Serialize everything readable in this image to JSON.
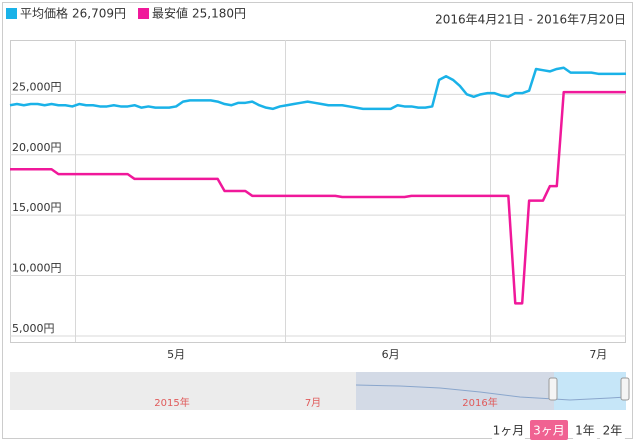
{
  "chart_data": {
    "type": "line",
    "date_range": "2016年4月21日 - 2016年7月20日",
    "categories": [
      null,
      null,
      null,
      null,
      null,
      null,
      null,
      null,
      null,
      null,
      null,
      null,
      null,
      null,
      null,
      null,
      null,
      null,
      null,
      null,
      null,
      null,
      null,
      null,
      "5月",
      null,
      null,
      null,
      null,
      null,
      null,
      null,
      null,
      null,
      null,
      null,
      null,
      null,
      null,
      null,
      null,
      null,
      null,
      null,
      null,
      null,
      null,
      null,
      null,
      null,
      null,
      null,
      null,
      null,
      null,
      "6月",
      null,
      null,
      null,
      null,
      null,
      null,
      null,
      null,
      null,
      null,
      null,
      null,
      null,
      null,
      null,
      null,
      null,
      null,
      null,
      null,
      null,
      null,
      null,
      null,
      null,
      null,
      null,
      null,
      null,
      "7月",
      null,
      null,
      null,
      null
    ],
    "series": [
      {
        "name": "平均価格",
        "color": "#1ab2e8",
        "latest": {
          "value": 26709,
          "label": "26,709円"
        },
        "values": [
          24100,
          24200,
          24100,
          24200,
          24200,
          24100,
          24200,
          24100,
          24100,
          24000,
          24200,
          24100,
          24100,
          24000,
          24000,
          24100,
          24000,
          24000,
          24100,
          23900,
          24000,
          23900,
          23900,
          23900,
          24000,
          24400,
          24500,
          24500,
          24500,
          24500,
          24400,
          24200,
          24100,
          24300,
          24300,
          24400,
          24100,
          23900,
          23800,
          24000,
          24100,
          24200,
          24300,
          24400,
          24300,
          24200,
          24100,
          24100,
          24100,
          24000,
          23900,
          23800,
          23800,
          23800,
          23800,
          23800,
          24100,
          24000,
          24000,
          23900,
          23900,
          24000,
          26200,
          26500,
          26200,
          25700,
          25000,
          24800,
          25000,
          25100,
          25100,
          24900,
          24800,
          25100,
          25100,
          25300,
          27100,
          27000,
          26900,
          27100,
          27200,
          26800,
          26800,
          26800,
          26800,
          26700,
          26700,
          26700,
          26700,
          26709
        ]
      },
      {
        "name": "最安値",
        "color": "#f0189a",
        "latest": {
          "value": 25180,
          "label": "25,180円"
        },
        "values": [
          18800,
          18800,
          18800,
          18800,
          18800,
          18800,
          18800,
          18400,
          18400,
          18400,
          18400,
          18400,
          18400,
          18400,
          18400,
          18400,
          18400,
          18400,
          18000,
          18000,
          18000,
          18000,
          18000,
          18000,
          18000,
          18000,
          18000,
          18000,
          18000,
          18000,
          18000,
          17000,
          17000,
          17000,
          17000,
          16600,
          16600,
          16600,
          16600,
          16600,
          16600,
          16600,
          16600,
          16600,
          16600,
          16600,
          16600,
          16600,
          16500,
          16500,
          16500,
          16500,
          16500,
          16500,
          16500,
          16500,
          16500,
          16500,
          16600,
          16600,
          16600,
          16600,
          16600,
          16600,
          16600,
          16600,
          16600,
          16600,
          16600,
          16600,
          16600,
          16600,
          16600,
          7700,
          7700,
          16200,
          16200,
          16200,
          17400,
          17400,
          25180,
          25180,
          25180,
          25180,
          25180,
          25180,
          25180,
          25180,
          25180,
          25180
        ]
      }
    ],
    "ylim": [
      4500,
      29500
    ],
    "yticks": [
      {
        "value": 5000,
        "label": "5,000円"
      },
      {
        "value": 10000,
        "label": "10,000円"
      },
      {
        "value": 15000,
        "label": "15,000円"
      },
      {
        "value": 20000,
        "label": "20,000円"
      },
      {
        "value": 25000,
        "label": "25,000円"
      }
    ],
    "grid": true
  },
  "navigator": {
    "labels": [
      "2015年",
      "7月",
      "2016年"
    ]
  },
  "range_buttons": [
    "1ヶ月",
    "3ヶ月",
    "1年",
    "2年"
  ],
  "selected_range": 1
}
